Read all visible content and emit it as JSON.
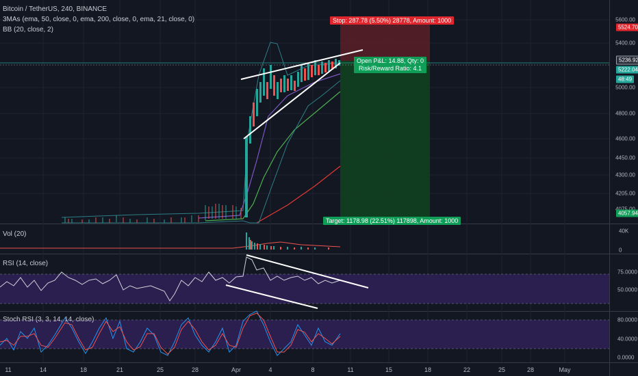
{
  "legend": {
    "title": "Bitcoin / TetherUS, 240, BINANCE",
    "ma": "3MAs (ema, 50, close, 0, ema, 200, close, 0, ema, 21, close, 0)",
    "bb": "BB (20, close, 2)",
    "vol": "Vol (20)",
    "rsi": "RSI (14, close)",
    "stoch": "Stoch RSI (3, 3, 14, 14, close)"
  },
  "price_ticks": [
    "5600.00",
    "5400.00",
    "5000.00",
    "4800.00",
    "4600.00",
    "4450.00",
    "4300.00",
    "4205.00",
    "4075.00"
  ],
  "price_badges": {
    "stop_price": "5524.70",
    "current": "5236.92",
    "last": "5222.04",
    "timer": "48:49",
    "target_price": "4057.94"
  },
  "vol_ticks": [
    "40K",
    "0"
  ],
  "rsi_ticks": [
    "75.0000",
    "50.0000"
  ],
  "stoch_ticks": [
    "80.0000",
    "40.0000",
    "0.0000"
  ],
  "position": {
    "stop_label": "Stop: 287.78 (5.50%) 28778, Amount: 1000",
    "pnl_label": "Open P&L: 14.88, Qty: 0",
    "rr_label": "Risk/Reward Ratio: 4.1",
    "target_label": "Target: 1178.98 (22.51%) 117898, Amount: 1000"
  },
  "x_ticks": [
    "11",
    "14",
    "18",
    "21",
    "25",
    "28",
    "Apr",
    "4",
    "8",
    "11",
    "15",
    "18",
    "22",
    "25",
    "28",
    "May"
  ],
  "colors": {
    "bg": "#131722",
    "up": "#26a69a",
    "down": "#ef5350",
    "ma21": "#7e57c2",
    "ma50": "#4caf50",
    "ma200": "#e53935",
    "bb": "#2e7f85",
    "rsi_band": "#2a1f4f"
  }
}
